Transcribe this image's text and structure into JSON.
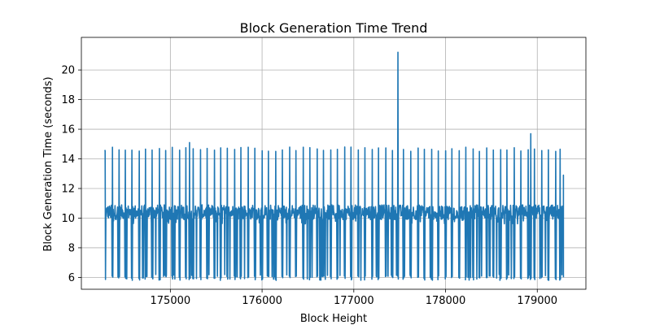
{
  "chart_data": {
    "type": "line",
    "title": "Block Generation Time Trend",
    "xlabel": "Block Height",
    "ylabel": "Block Generation Time (seconds)",
    "xlim": [
      174030,
      179530
    ],
    "ylim": [
      5.2,
      22.2
    ],
    "x_ticks": [
      175000,
      176000,
      177000,
      178000,
      179000
    ],
    "x_tick_labels": [
      "175000",
      "176000",
      "177000",
      "178000",
      "179000"
    ],
    "y_ticks": [
      6,
      8,
      10,
      12,
      14,
      16,
      18,
      20
    ],
    "y_tick_labels": [
      "6",
      "8",
      "10",
      "12",
      "14",
      "16",
      "18",
      "20"
    ],
    "grid": true,
    "series_color": "#1f77b4",
    "series": [
      {
        "name": "",
        "x_start": 174285,
        "x_end": 179285,
        "baseline_range": [
          9.9,
          10.9
        ],
        "min_value": 5.8,
        "spike_value_typical": 14.8,
        "max_spike": {
          "x": 177480,
          "y": 21.2
        },
        "secondary_peaks": [
          {
            "x": 178930,
            "y": 15.7
          },
          {
            "x": 175210,
            "y": 15.1
          },
          {
            "x": 174970,
            "y": 12.0
          }
        ],
        "last_point": {
          "x": 179285,
          "y": 12.9
        },
        "spike_positions": [
          174290,
          174370,
          174440,
          174510,
          174580,
          174660,
          174730,
          174800,
          174880,
          174950,
          175020,
          175100,
          175170,
          175210,
          175250,
          175330,
          175400,
          175480,
          175550,
          175620,
          175700,
          175770,
          175850,
          175920,
          176000,
          176070,
          176150,
          176220,
          176300,
          176370,
          176450,
          176520,
          176600,
          176670,
          176750,
          176820,
          176900,
          176970,
          177050,
          177120,
          177200,
          177270,
          177350,
          177420,
          177480,
          177540,
          177620,
          177700,
          177770,
          177850,
          177920,
          178000,
          178070,
          178150,
          178220,
          178300,
          178370,
          178450,
          178520,
          178600,
          178670,
          178750,
          178820,
          178900,
          178930,
          178970,
          179050,
          179120,
          179200,
          179250
        ]
      }
    ]
  }
}
